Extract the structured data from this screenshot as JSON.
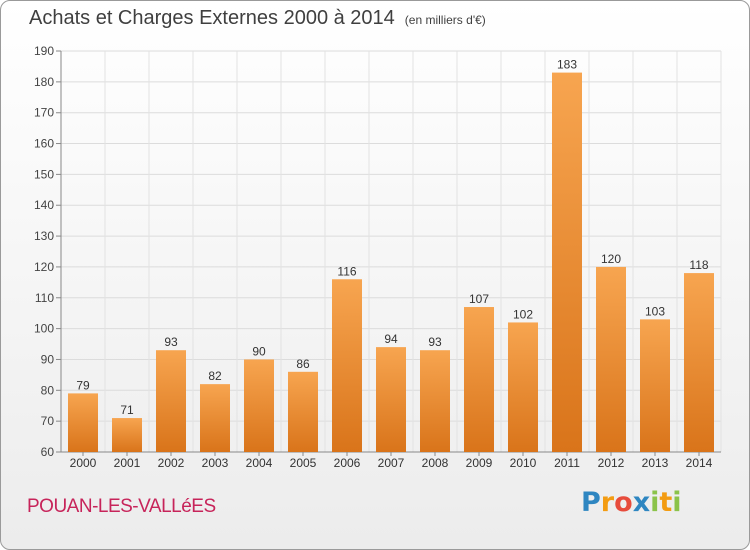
{
  "header": {
    "title": "Achats et Charges Externes 2000 à 2014",
    "subtitle": "(en milliers d'€)"
  },
  "footer": {
    "commune": "POUAN-LES-VALLéES",
    "logo_text": "Proxiti",
    "logo_letters": [
      "P",
      "r",
      "o",
      "x",
      "i",
      "t",
      "i"
    ],
    "logo_colors": [
      "#2e86c1",
      "#f39c12",
      "#e74c3c",
      "#2e86c1",
      "#8bc34a",
      "#f39c12",
      "#8bc34a"
    ]
  },
  "chart_data": {
    "type": "bar",
    "title": "Achats et Charges Externes 2000 à 2014",
    "subtitle": "(en milliers d'€)",
    "categories": [
      "2000",
      "2001",
      "2002",
      "2003",
      "2004",
      "2005",
      "2006",
      "2007",
      "2008",
      "2009",
      "2010",
      "2011",
      "2012",
      "2013",
      "2014"
    ],
    "values": [
      79,
      71,
      93,
      82,
      90,
      86,
      116,
      94,
      93,
      107,
      102,
      183,
      120,
      103,
      118
    ],
    "ylim": [
      60,
      190
    ],
    "yticks": [
      60,
      70,
      80,
      90,
      100,
      110,
      120,
      130,
      140,
      150,
      160,
      170,
      180,
      190
    ],
    "grid": true,
    "bar_color": "#f28c28",
    "xlabel": "",
    "ylabel": ""
  }
}
